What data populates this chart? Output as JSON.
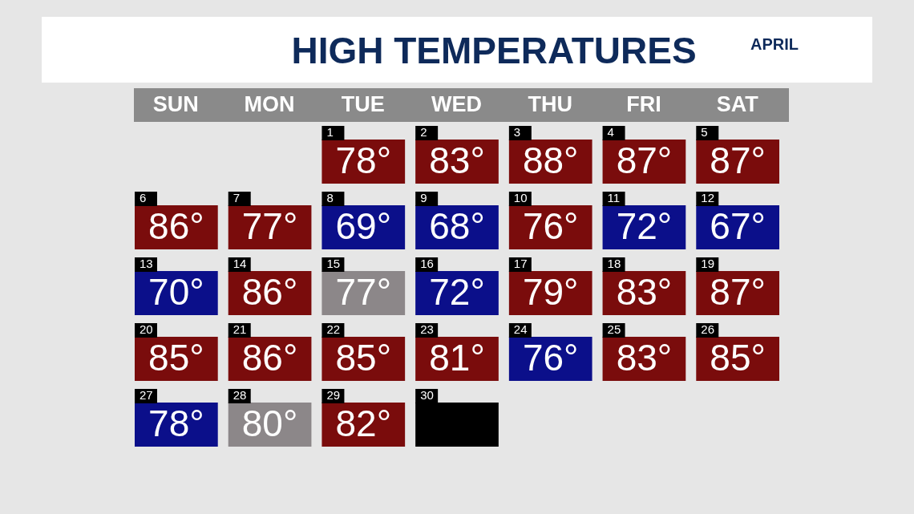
{
  "chart_data": {
    "type": "heatmap",
    "title": "HIGH TEMPERATURES",
    "subtitle": "APRIL",
    "categories": [
      "SUN",
      "MON",
      "TUE",
      "WED",
      "THU",
      "FRI",
      "SAT"
    ],
    "y_categories": [
      null,
      null,
      null,
      null,
      null
    ],
    "cells": [
      [
        null,
        null,
        78,
        83,
        88,
        87,
        87
      ],
      [
        86,
        77,
        69,
        68,
        76,
        72,
        67
      ],
      [
        70,
        86,
        77,
        72,
        79,
        83,
        87
      ],
      [
        85,
        86,
        85,
        81,
        76,
        83,
        85
      ],
      [
        78,
        80,
        82,
        null,
        null,
        null,
        null
      ]
    ],
    "cell_labels": [
      [
        null,
        null,
        "78°",
        "83°",
        "88°",
        "87°",
        "87°"
      ],
      [
        "86°",
        "77°",
        "69°",
        "68°",
        "76°",
        "72°",
        "67°"
      ],
      [
        "70°",
        "86°",
        "77°",
        "72°",
        "79°",
        "83°",
        "87°"
      ],
      [
        "85°",
        "86°",
        "85°",
        "81°",
        "76°",
        "83°",
        "85°"
      ],
      [
        "78°",
        "80°",
        "82°",
        null,
        null,
        null,
        null
      ]
    ],
    "colors": [
      [
        null,
        null,
        "#7a0c0c",
        "#7a0c0c",
        "#7a0c0c",
        "#7a0c0c",
        "#7a0c0c"
      ],
      [
        "#7a0c0c",
        "#7a0c0c",
        "#0b0f8a",
        "#0b0f8a",
        "#7a0c0c",
        "#0b0f8a",
        "#0b0f8a"
      ],
      [
        "#0b0f8a",
        "#7a0c0c",
        "#8c8789",
        "#0b0f8a",
        "#7a0c0c",
        "#7a0c0c",
        "#7a0c0c"
      ],
      [
        "#7a0c0c",
        "#7a0c0c",
        "#7a0c0c",
        "#7a0c0c",
        "#0b0f8a",
        "#7a0c0c",
        "#7a0c0c"
      ],
      [
        "#0b0f8a",
        "#8c8789",
        "#7a0c0c",
        "#000000",
        null,
        null,
        null
      ]
    ],
    "annotations": [
      "1",
      "2",
      "3",
      "4",
      "5",
      "6",
      "7",
      "8",
      "9",
      "10",
      "11",
      "12",
      "13",
      "14",
      "15",
      "16",
      "17",
      "18",
      "19",
      "20",
      "21",
      "22",
      "23",
      "24",
      "25",
      "26",
      "27",
      "28",
      "29",
      "30"
    ]
  }
}
